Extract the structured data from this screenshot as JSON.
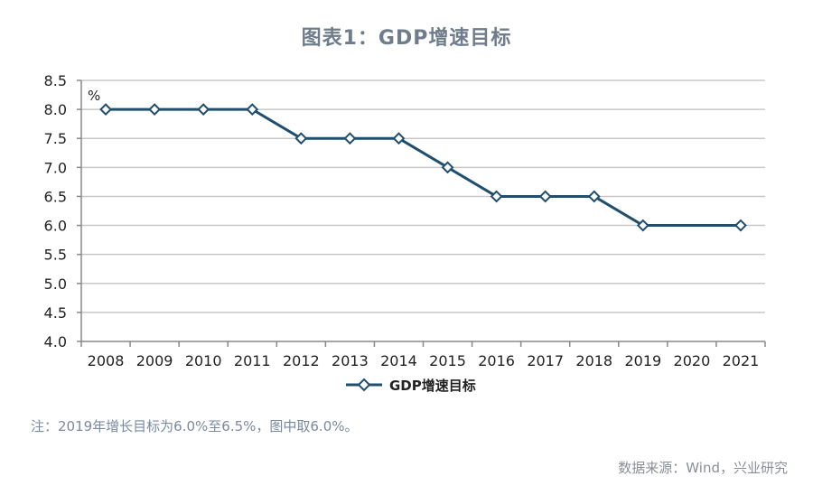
{
  "chart_data": {
    "type": "line",
    "title": "图表1：GDP增速目标",
    "unit_label": "%",
    "categories": [
      "2008",
      "2009",
      "2010",
      "2011",
      "2012",
      "2013",
      "2014",
      "2015",
      "2016",
      "2017",
      "2018",
      "2019",
      "2020",
      "2021"
    ],
    "series": [
      {
        "name": "GDP增速目标",
        "values": [
          8.0,
          8.0,
          8.0,
          8.0,
          7.5,
          7.5,
          7.5,
          7.0,
          6.5,
          6.5,
          6.5,
          6.0,
          null,
          6.0
        ],
        "color": "#1f4e6e"
      }
    ],
    "y_ticks": [
      "4.0",
      "4.5",
      "5.0",
      "5.5",
      "6.0",
      "6.5",
      "7.0",
      "7.5",
      "8.0",
      "8.5"
    ],
    "ylim": [
      4.0,
      8.5
    ],
    "grid": true,
    "legend_position": "bottom"
  },
  "note": "注：2019年增长目标为6.0%至6.5%，图中取6.0%。",
  "source": "数据来源：Wind，兴业研究",
  "colors": {
    "title": "#6f7c8b",
    "grid": "#c8c8c8",
    "axis": "#888888",
    "line": "#1f4e6e"
  }
}
